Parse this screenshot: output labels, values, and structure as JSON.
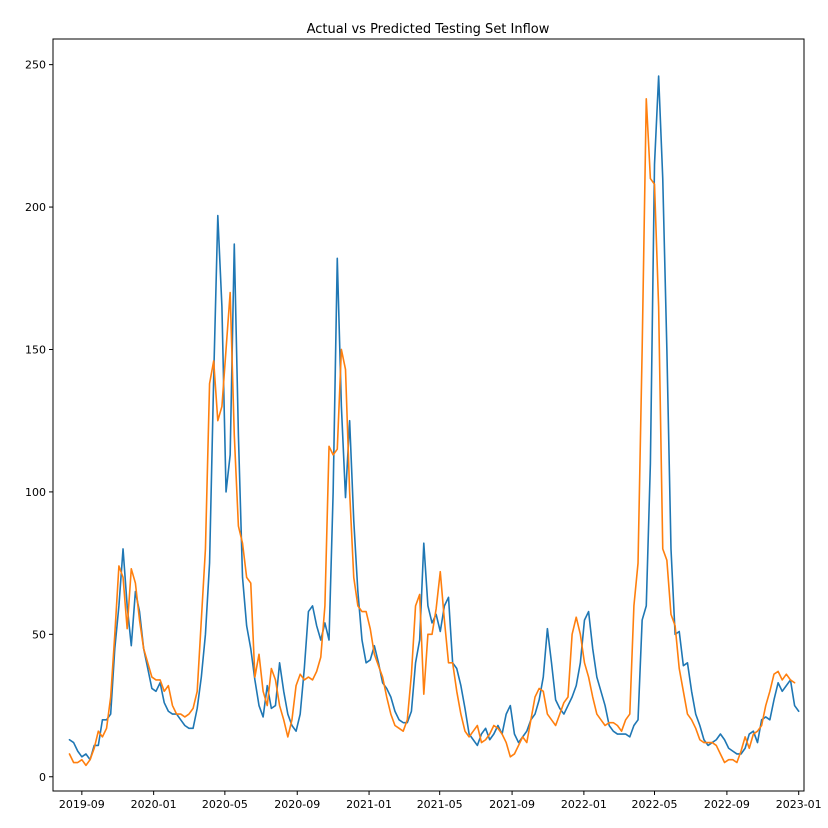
{
  "chart_data": {
    "type": "line",
    "title": "Actual vs Predicted Testing Set Inflow",
    "xlabel": "",
    "ylabel": "",
    "x_start": "2019-08-11",
    "x_step_days": 7,
    "xlim": [
      "2019-07-14",
      "2023-01-10"
    ],
    "ylim": [
      -5,
      259
    ],
    "x_ticks": [
      {
        "date": "2019-09-01",
        "label": "2019-09"
      },
      {
        "date": "2020-01-01",
        "label": "2020-01"
      },
      {
        "date": "2020-05-01",
        "label": "2020-05"
      },
      {
        "date": "2020-09-01",
        "label": "2020-09"
      },
      {
        "date": "2021-01-01",
        "label": "2021-01"
      },
      {
        "date": "2021-05-01",
        "label": "2021-05"
      },
      {
        "date": "2021-09-01",
        "label": "2021-09"
      },
      {
        "date": "2022-01-01",
        "label": "2022-01"
      },
      {
        "date": "2022-05-01",
        "label": "2022-05"
      },
      {
        "date": "2022-09-01",
        "label": "2022-09"
      },
      {
        "date": "2023-01-01",
        "label": "2023-01"
      }
    ],
    "y_ticks": [
      0,
      50,
      100,
      150,
      200,
      250
    ],
    "grid": false,
    "legend": "none",
    "series": [
      {
        "color": "#1f77b4",
        "values": [
          13,
          12,
          9,
          7,
          8,
          6,
          11,
          11,
          20,
          20,
          22,
          45,
          60,
          80,
          60,
          46,
          65,
          58,
          45,
          38,
          31,
          30,
          33,
          26,
          23,
          22,
          22,
          20,
          18,
          17,
          17,
          24,
          35,
          50,
          75,
          140,
          197,
          165,
          100,
          113,
          187,
          120,
          70,
          53,
          45,
          34,
          25,
          21,
          32,
          24,
          25,
          40,
          30,
          22,
          18,
          16,
          22,
          38,
          58,
          60,
          53,
          48,
          54,
          48,
          100,
          182,
          130,
          98,
          125,
          90,
          65,
          48,
          40,
          41,
          46,
          40,
          33,
          31,
          28,
          23,
          20,
          19,
          19,
          23,
          40,
          48,
          82,
          60,
          54,
          57,
          51,
          60,
          63,
          40,
          38,
          32,
          24,
          15,
          13,
          11,
          15,
          17,
          13,
          15,
          18,
          15,
          22,
          25,
          15,
          12,
          14,
          16,
          20,
          22,
          27,
          35,
          52,
          40,
          27,
          24,
          22,
          25,
          28,
          32,
          40,
          55,
          58,
          45,
          35,
          30,
          25,
          18,
          16,
          15,
          15,
          15,
          14,
          18,
          20,
          55,
          60,
          110,
          215,
          246,
          210,
          150,
          80,
          50,
          51,
          39,
          40,
          30,
          22,
          18,
          13,
          11,
          12,
          13,
          15,
          13,
          10,
          9,
          8,
          8,
          10,
          15,
          16,
          12,
          20,
          21,
          20,
          27,
          33,
          30,
          32,
          34,
          25,
          23
        ],
        "shape": "blue line"
      },
      {
        "color": "#ff7f0e",
        "values": [
          8,
          5,
          5,
          6,
          4,
          6,
          10,
          16,
          14,
          17,
          28,
          50,
          74,
          70,
          52,
          73,
          68,
          55,
          45,
          40,
          35,
          34,
          34,
          30,
          32,
          25,
          22,
          22,
          21,
          22,
          24,
          30,
          55,
          80,
          138,
          146,
          125,
          130,
          150,
          170,
          120,
          88,
          82,
          70,
          68,
          35,
          43,
          30,
          25,
          38,
          34,
          25,
          20,
          14,
          20,
          32,
          36,
          34,
          35,
          34,
          37,
          42,
          60,
          116,
          113,
          115,
          150,
          143,
          100,
          70,
          60,
          58,
          58,
          52,
          43,
          39,
          35,
          28,
          22,
          18,
          17,
          16,
          20,
          36,
          60,
          64,
          29,
          50,
          50,
          59,
          72,
          55,
          40,
          40,
          30,
          22,
          16,
          14,
          16,
          18,
          12,
          13,
          15,
          18,
          17,
          15,
          12,
          7,
          8,
          11,
          14,
          12,
          20,
          28,
          31,
          30,
          22,
          20,
          18,
          22,
          26,
          28,
          50,
          56,
          50,
          40,
          35,
          28,
          22,
          20,
          18,
          19,
          19,
          18,
          16,
          20,
          22,
          60,
          75,
          150,
          238,
          210,
          208,
          165,
          80,
          76,
          57,
          53,
          38,
          30,
          22,
          20,
          17,
          13,
          12,
          12,
          12,
          11,
          8,
          5,
          6,
          6,
          5,
          9,
          14,
          10,
          15,
          16,
          18,
          25,
          30,
          36,
          37,
          34,
          36,
          34,
          33
        ]
      }
    ]
  }
}
